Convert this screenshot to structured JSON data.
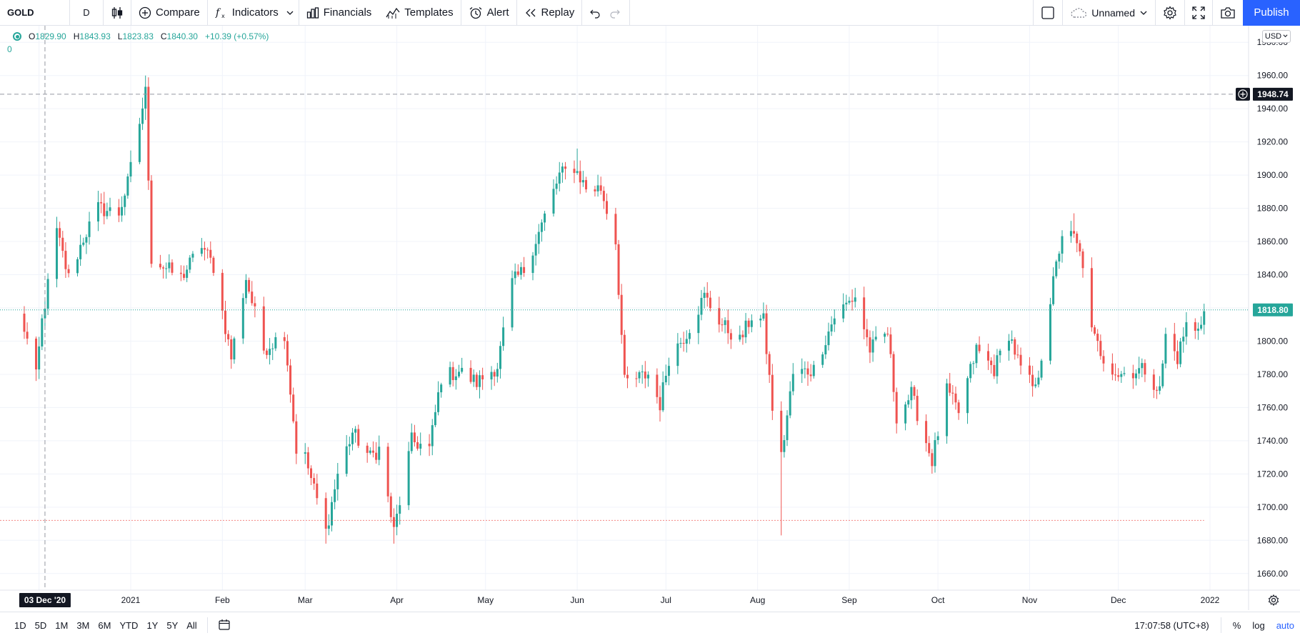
{
  "toolbar": {
    "symbol": "GOLD",
    "interval": "D",
    "compare_label": "Compare",
    "indicators_label": "Indicators",
    "financials_label": "Financials",
    "templates_label": "Templates",
    "alert_label": "Alert",
    "replay_label": "Replay",
    "layout_name": "Unnamed",
    "publish_label": "Publish"
  },
  "legend": {
    "open_label": "O",
    "open": "1829.90",
    "high_label": "H",
    "high": "1843.93",
    "low_label": "L",
    "low": "1823.83",
    "close_label": "C",
    "close": "1840.30",
    "change": "+10.39 (+0.57%)",
    "volume": "0"
  },
  "currency": "USD",
  "price_axis": {
    "ticks": [
      "1980.00",
      "1960.00",
      "1940.00",
      "1920.00",
      "1900.00",
      "1880.00",
      "1860.00",
      "1840.00",
      "1820.00",
      "1800.00",
      "1780.00",
      "1760.00",
      "1740.00",
      "1720.00",
      "1700.00",
      "1680.00",
      "1660.00"
    ],
    "crosshair_price": "1948.74",
    "last_price": "1818.80"
  },
  "time_axis": {
    "labels": [
      "2021",
      "Feb",
      "Mar",
      "Apr",
      "May",
      "Jun",
      "Jul",
      "Aug",
      "Sep",
      "Oct",
      "Nov",
      "Dec",
      "2022"
    ],
    "crosshair_date": "03 Dec '20"
  },
  "bottom": {
    "ranges": [
      "1D",
      "5D",
      "1M",
      "3M",
      "6M",
      "YTD",
      "1Y",
      "5Y",
      "All"
    ],
    "time": "17:07:58 (UTC+8)",
    "percent_label": "%",
    "log_label": "log",
    "auto_label": "auto"
  },
  "colors": {
    "up": "#26a69a",
    "down": "#ef5350",
    "accent": "#2962ff",
    "grid": "#f0f3fa"
  },
  "chart_data": {
    "type": "candlestick",
    "ylim": [
      1650,
      1990
    ],
    "anchors": [
      [
        "2020-11-25",
        1815
      ],
      [
        "2020-11-30",
        1778
      ],
      [
        "2020-12-02",
        1812
      ],
      [
        "2020-12-07",
        1866
      ],
      [
        "2020-12-11",
        1838
      ],
      [
        "2020-12-16",
        1862
      ],
      [
        "2020-12-21",
        1880
      ],
      [
        "2020-12-28",
        1877
      ],
      [
        "2020-12-31",
        1895
      ],
      [
        "2021-01-06",
        1950
      ],
      [
        "2021-01-08",
        1850
      ],
      [
        "2021-01-12",
        1845
      ],
      [
        "2021-01-18",
        1838
      ],
      [
        "2021-01-25",
        1858
      ],
      [
        "2021-01-29",
        1845
      ],
      [
        "2021-02-04",
        1790
      ],
      [
        "2021-02-09",
        1838
      ],
      [
        "2021-02-15",
        1795
      ],
      [
        "2021-02-22",
        1805
      ],
      [
        "2021-02-26",
        1735
      ],
      [
        "2021-03-01",
        1730
      ],
      [
        "2021-03-08",
        1685
      ],
      [
        "2021-03-12",
        1720
      ],
      [
        "2021-03-17",
        1745
      ],
      [
        "2021-03-23",
        1730
      ],
      [
        "2021-03-26",
        1735
      ],
      [
        "2021-03-31",
        1685
      ],
      [
        "2021-04-06",
        1740
      ],
      [
        "2021-04-12",
        1735
      ],
      [
        "2021-04-16",
        1778
      ],
      [
        "2021-04-22",
        1782
      ],
      [
        "2021-04-28",
        1775
      ],
      [
        "2021-05-05",
        1785
      ],
      [
        "2021-05-10",
        1835
      ],
      [
        "2021-05-14",
        1843
      ],
      [
        "2021-05-20",
        1870
      ],
      [
        "2021-05-26",
        1900
      ],
      [
        "2021-05-31",
        1905
      ],
      [
        "2021-06-04",
        1892
      ],
      [
        "2021-06-09",
        1892
      ],
      [
        "2021-06-14",
        1860
      ],
      [
        "2021-06-17",
        1775
      ],
      [
        "2021-06-22",
        1778
      ],
      [
        "2021-06-25",
        1780
      ],
      [
        "2021-06-29",
        1762
      ],
      [
        "2021-07-02",
        1790
      ],
      [
        "2021-07-08",
        1805
      ],
      [
        "2021-07-14",
        1827
      ],
      [
        "2021-07-20",
        1810
      ],
      [
        "2021-07-26",
        1800
      ],
      [
        "2021-07-30",
        1815
      ],
      [
        "2021-08-03",
        1812
      ],
      [
        "2021-08-06",
        1760
      ],
      [
        "2021-08-09",
        1730
      ],
      [
        "2021-08-13",
        1780
      ],
      [
        "2021-08-20",
        1783
      ],
      [
        "2021-08-27",
        1815
      ],
      [
        "2021-09-03",
        1827
      ],
      [
        "2021-09-08",
        1795
      ],
      [
        "2021-09-14",
        1805
      ],
      [
        "2021-09-17",
        1755
      ],
      [
        "2021-09-22",
        1768
      ],
      [
        "2021-09-29",
        1728
      ],
      [
        "2021-10-04",
        1770
      ],
      [
        "2021-10-08",
        1757
      ],
      [
        "2021-10-14",
        1795
      ],
      [
        "2021-10-20",
        1783
      ],
      [
        "2021-10-25",
        1805
      ],
      [
        "2021-10-29",
        1783
      ],
      [
        "2021-11-03",
        1770
      ],
      [
        "2021-11-08",
        1825
      ],
      [
        "2021-11-12",
        1865
      ],
      [
        "2021-11-16",
        1862
      ],
      [
        "2021-11-19",
        1847
      ],
      [
        "2021-11-22",
        1805
      ],
      [
        "2021-11-26",
        1790
      ],
      [
        "2021-12-01",
        1780
      ],
      [
        "2021-12-06",
        1782
      ],
      [
        "2021-12-10",
        1783
      ],
      [
        "2021-12-15",
        1770
      ],
      [
        "2021-12-17",
        1803
      ],
      [
        "2021-12-21",
        1790
      ],
      [
        "2021-12-24",
        1810
      ],
      [
        "2021-12-27",
        1805
      ],
      [
        "2021-12-30",
        1818
      ]
    ],
    "spikes": [
      [
        "2021-01-06",
        "high",
        1960
      ],
      [
        "2021-08-09",
        "low",
        1683
      ],
      [
        "2021-03-08",
        "low",
        1678
      ],
      [
        "2021-03-31",
        "low",
        1678
      ],
      [
        "2021-11-16",
        "high",
        1877
      ],
      [
        "2021-06-01",
        "high",
        1916
      ]
    ],
    "ref_lines": {
      "crosshair_price": 1948.74,
      "last_price": 1818.8,
      "low_marker": 1692
    },
    "grid": true
  }
}
